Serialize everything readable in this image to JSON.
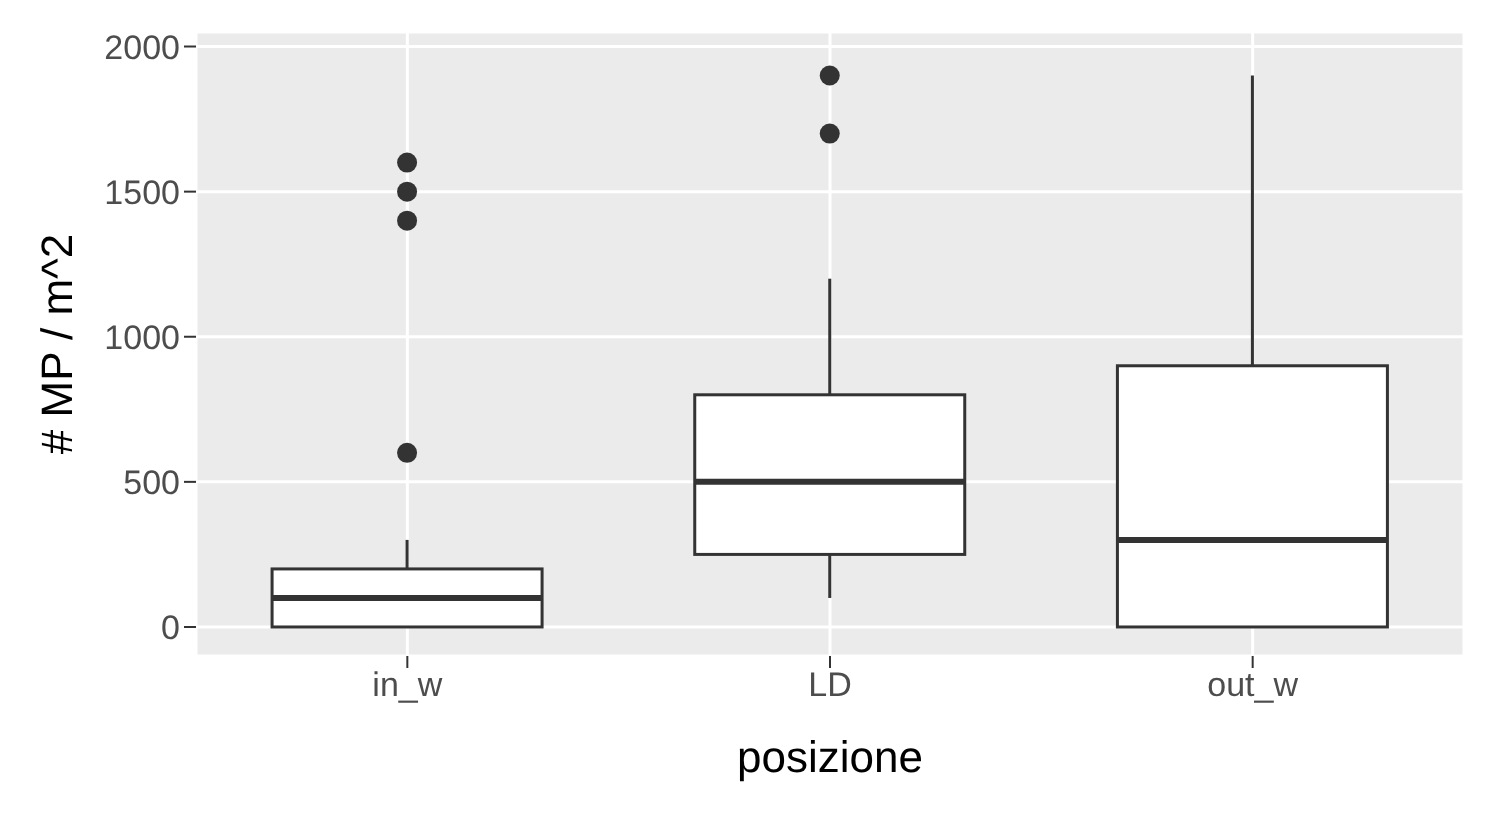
{
  "chart_data": {
    "type": "box",
    "xlabel": "posizione",
    "ylabel": "# MP / m^2",
    "categories": [
      "in_w",
      "LD",
      "out_w"
    ],
    "boxes": [
      {
        "low": 0,
        "q1": 0,
        "median": 100,
        "q3": 200,
        "high": 300,
        "outliers": [
          600,
          1400,
          1500,
          1600
        ]
      },
      {
        "low": 100,
        "q1": 250,
        "median": 500,
        "q3": 800,
        "high": 1200,
        "outliers": [
          1700,
          1900
        ]
      },
      {
        "low": 0,
        "q1": 0,
        "median": 300,
        "q3": 900,
        "high": 1900
      }
    ],
    "color": "#333333",
    "ylim": [
      -100,
      2050
    ],
    "yticks": [
      0,
      500,
      1000,
      1500,
      2000
    ],
    "grid": true
  }
}
